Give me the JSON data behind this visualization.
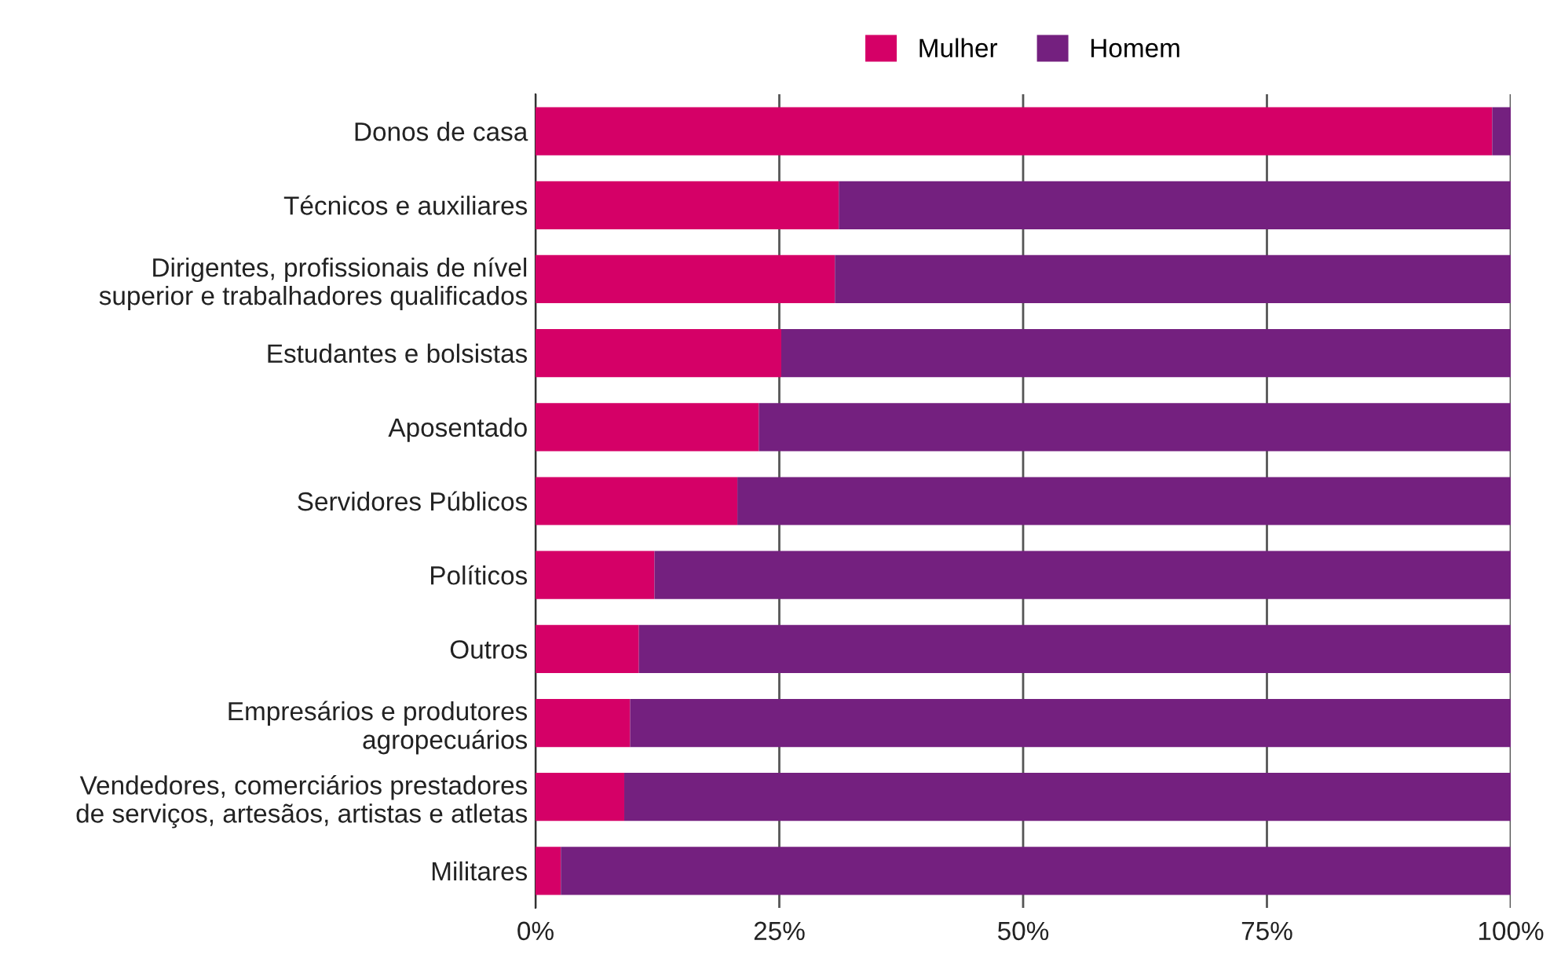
{
  "chart_data": {
    "type": "bar",
    "orientation": "horizontal",
    "stacked": true,
    "categories": [
      "Donos de casa",
      "Técnicos e auxiliares",
      "Dirigentes, profissionais de nível\nsuperior e trabalhadores qualificados",
      "Estudantes e bolsistas",
      "Aposentado",
      "Servidores Públicos",
      "Políticos",
      "Outros",
      "Empresários e produtores\nagropecuários",
      "Vendedores, comerciários prestadores\nde serviços, artesãos, artistas e atletas",
      "Militares"
    ],
    "series": [
      {
        "name": "Mulher",
        "color": "#d50067",
        "values": [
          98.1,
          31.1,
          30.7,
          25.2,
          22.9,
          20.7,
          12.2,
          10.6,
          9.7,
          9.1,
          2.6
        ]
      },
      {
        "name": "Homem",
        "color": "#74207f",
        "values": [
          1.9,
          68.9,
          69.3,
          74.8,
          77.1,
          79.3,
          87.8,
          89.4,
          90.3,
          90.9,
          97.4
        ]
      }
    ],
    "xlim": [
      0,
      100
    ],
    "xticks": [
      {
        "value": 0,
        "label": "0%"
      },
      {
        "value": 25,
        "label": "25%"
      },
      {
        "value": 50,
        "label": "50%"
      },
      {
        "value": 75,
        "label": "75%"
      },
      {
        "value": 100,
        "label": "100%"
      }
    ],
    "grid": "x",
    "legend": "top"
  }
}
